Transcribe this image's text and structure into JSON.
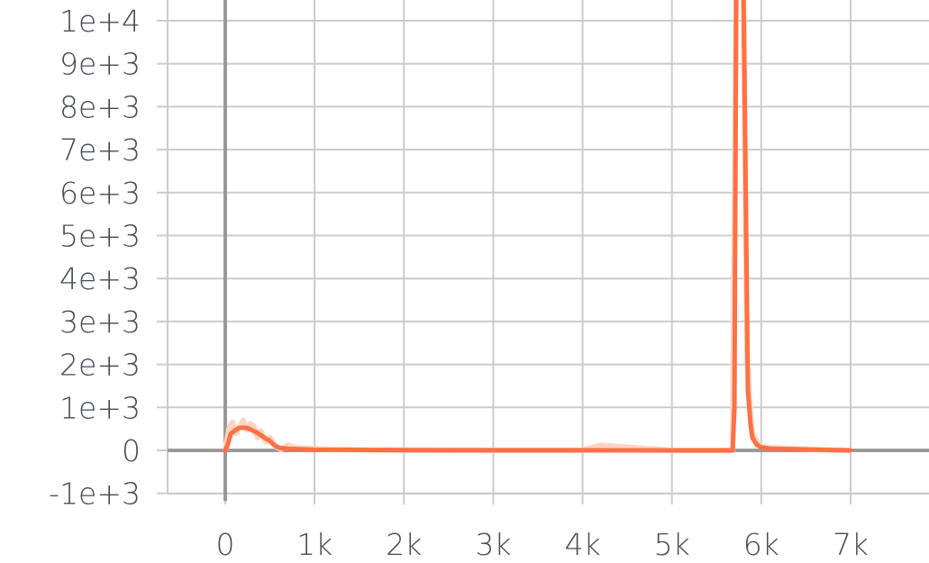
{
  "chart_data": {
    "type": "line",
    "title": "",
    "xlabel": "",
    "ylabel": "",
    "xlim": [
      -650,
      7850
    ],
    "ylim": [
      -1100,
      10500
    ],
    "x_ticks": [
      0,
      1000,
      2000,
      3000,
      4000,
      5000,
      6000,
      7000
    ],
    "x_tick_labels": [
      "0",
      "1k",
      "2k",
      "3k",
      "4k",
      "5k",
      "6k",
      "7k"
    ],
    "y_ticks": [
      -1000,
      0,
      1000,
      2000,
      3000,
      4000,
      5000,
      6000,
      7000,
      8000,
      9000,
      10000
    ],
    "y_tick_labels": [
      "-1e+3",
      "0",
      "1e+3",
      "2e+3",
      "3e+3",
      "4e+3",
      "5e+3",
      "6e+3",
      "7e+3",
      "8e+3",
      "9e+3",
      "1e+4"
    ],
    "grid": true,
    "colors": {
      "smoothed": "#ff7043",
      "raw": "#ffd3c2",
      "grid": "#cccccc",
      "zero_axis": "#999999"
    },
    "series": [
      {
        "smoothed": true,
        "x": [
          0,
          30,
          60,
          100,
          150,
          200,
          250,
          300,
          350,
          400,
          450,
          500,
          550,
          600,
          700,
          800,
          1000,
          1500,
          2000,
          3000,
          4000,
          5000,
          5600,
          5650,
          5680,
          5700,
          5720,
          5800,
          5850,
          5880,
          5900,
          5950,
          6000,
          6100,
          6500,
          7000
        ],
        "y": [
          0,
          150,
          380,
          450,
          520,
          530,
          520,
          470,
          420,
          350,
          280,
          220,
          120,
          60,
          40,
          30,
          15,
          10,
          5,
          3,
          2,
          0,
          0,
          0,
          0,
          1000,
          11000,
          11000,
          1400,
          600,
          300,
          130,
          70,
          40,
          20,
          0
        ]
      },
      {
        "smoothed": false,
        "x": [
          0,
          40,
          80,
          120,
          160,
          200,
          240,
          280,
          320,
          360,
          400,
          450,
          500,
          560,
          620,
          700,
          800,
          900,
          1000,
          1200,
          1500,
          2000,
          3000,
          4000,
          4200,
          5000,
          5600,
          5680,
          5720,
          5800,
          5840,
          5880,
          5900,
          5950,
          6000,
          6100,
          6500,
          7000
        ],
        "y": [
          0,
          500,
          650,
          400,
          550,
          700,
          480,
          620,
          560,
          300,
          450,
          200,
          300,
          100,
          20,
          120,
          60,
          50,
          40,
          20,
          15,
          10,
          5,
          5,
          120,
          0,
          0,
          0,
          11000,
          11000,
          2200,
          800,
          400,
          200,
          100,
          60,
          30,
          0
        ]
      }
    ]
  }
}
